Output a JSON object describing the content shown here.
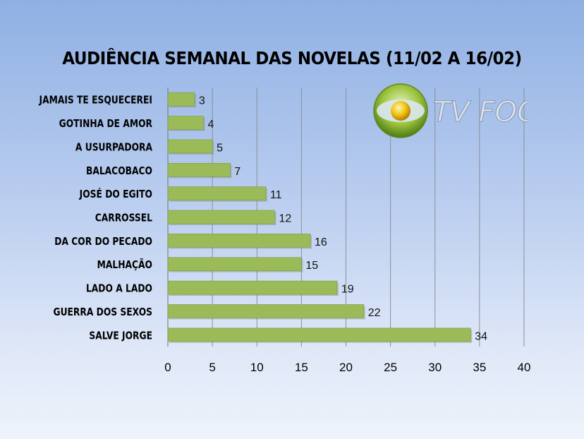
{
  "chart_data": {
    "type": "bar",
    "orientation": "horizontal",
    "title": "AUDIÊNCIA SEMANAL DAS NOVELAS (11/02 A 16/02)",
    "categories": [
      "JAMAIS TE ESQUECEREI",
      "GOTINHA DE AMOR",
      "A USURPADORA",
      "BALACOBACO",
      "JOSÉ DO EGITO",
      "CARROSSEL",
      "DA COR DO PECADO",
      "MALHAÇÃO",
      "LADO A LADO",
      "GUERRA DOS SEXOS",
      "SALVE JORGE"
    ],
    "values": [
      3,
      4,
      5,
      7,
      11,
      12,
      16,
      15,
      19,
      22,
      34
    ],
    "xlim": [
      0,
      40
    ],
    "xticks": [
      "0",
      "5",
      "10",
      "15",
      "20",
      "25",
      "30",
      "35",
      "40"
    ],
    "xlabel": "",
    "ylabel": "",
    "grid": "vertical",
    "bar_color": "#9bbb59",
    "data_labels": true
  },
  "logo": {
    "text": "TV FOCO"
  }
}
